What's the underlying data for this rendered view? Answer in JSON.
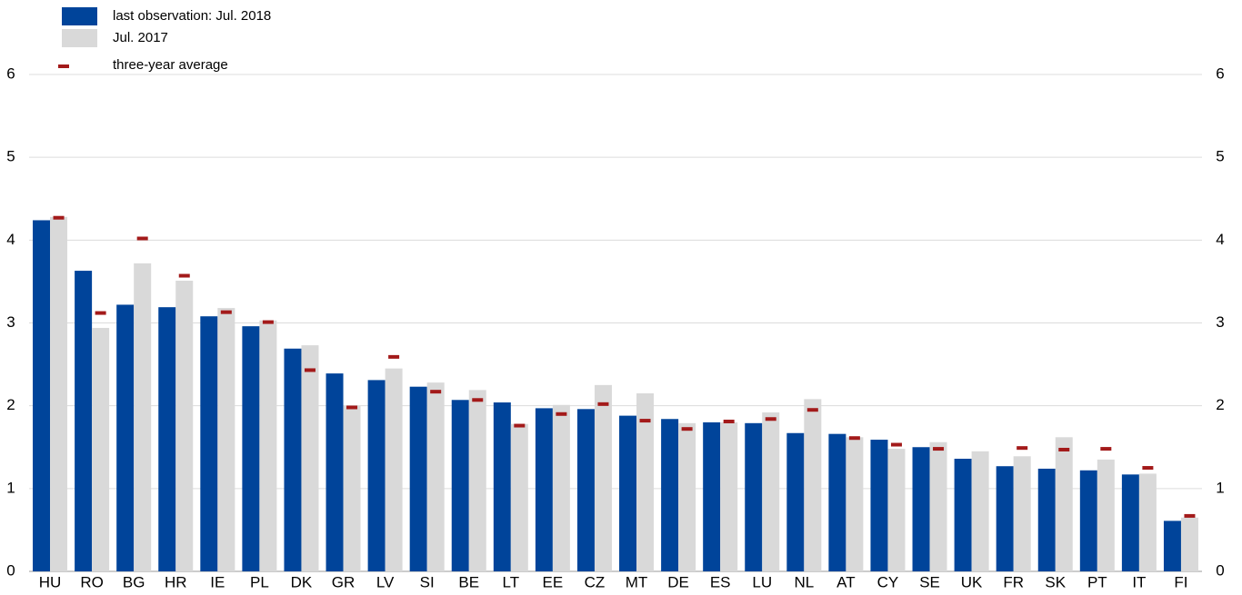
{
  "chart_data": {
    "type": "bar",
    "categories": [
      "HU",
      "RO",
      "BG",
      "HR",
      "IE",
      "PL",
      "DK",
      "GR",
      "LV",
      "SI",
      "BE",
      "LT",
      "EE",
      "CZ",
      "MT",
      "DE",
      "ES",
      "LU",
      "NL",
      "AT",
      "CY",
      "SE",
      "UK",
      "FR",
      "SK",
      "PT",
      "IT",
      "FI"
    ],
    "series": [
      {
        "name": "last observation: Jul. 2018",
        "color": "#00449a",
        "mark": "bar",
        "values": [
          4.24,
          3.63,
          3.22,
          3.19,
          3.08,
          2.96,
          2.69,
          2.39,
          2.31,
          2.23,
          2.07,
          2.04,
          1.97,
          1.96,
          1.88,
          1.84,
          1.8,
          1.79,
          1.67,
          1.66,
          1.59,
          1.5,
          1.36,
          1.27,
          1.24,
          1.22,
          1.17,
          0.61
        ]
      },
      {
        "name": "Jul. 2017",
        "color": "#d9d9d9",
        "mark": "bar",
        "values": [
          4.28,
          2.94,
          3.72,
          3.51,
          3.18,
          3.03,
          2.73,
          2.0,
          2.45,
          2.28,
          2.19,
          1.78,
          2.01,
          2.25,
          2.15,
          1.79,
          1.8,
          1.92,
          2.08,
          1.62,
          1.48,
          1.56,
          1.45,
          1.39,
          1.62,
          1.35,
          1.18,
          0.65
        ]
      },
      {
        "name": "three-year average",
        "color": "#a31a1a",
        "mark": "dash",
        "values": [
          4.27,
          3.12,
          4.02,
          3.57,
          3.13,
          3.01,
          2.43,
          1.98,
          2.59,
          2.17,
          2.07,
          1.76,
          1.9,
          2.02,
          1.82,
          1.72,
          1.81,
          1.84,
          1.95,
          1.61,
          1.53,
          1.48,
          null,
          1.49,
          1.47,
          1.48,
          1.25,
          0.67
        ]
      }
    ],
    "ylim": [
      0,
      6
    ],
    "yticks": [
      0,
      1,
      2,
      3,
      4,
      5,
      6
    ],
    "y2lim": [
      0,
      6
    ],
    "y2ticks": [
      0,
      1,
      2,
      3,
      4,
      5,
      6
    ],
    "grid": true,
    "legend": "top-left"
  }
}
